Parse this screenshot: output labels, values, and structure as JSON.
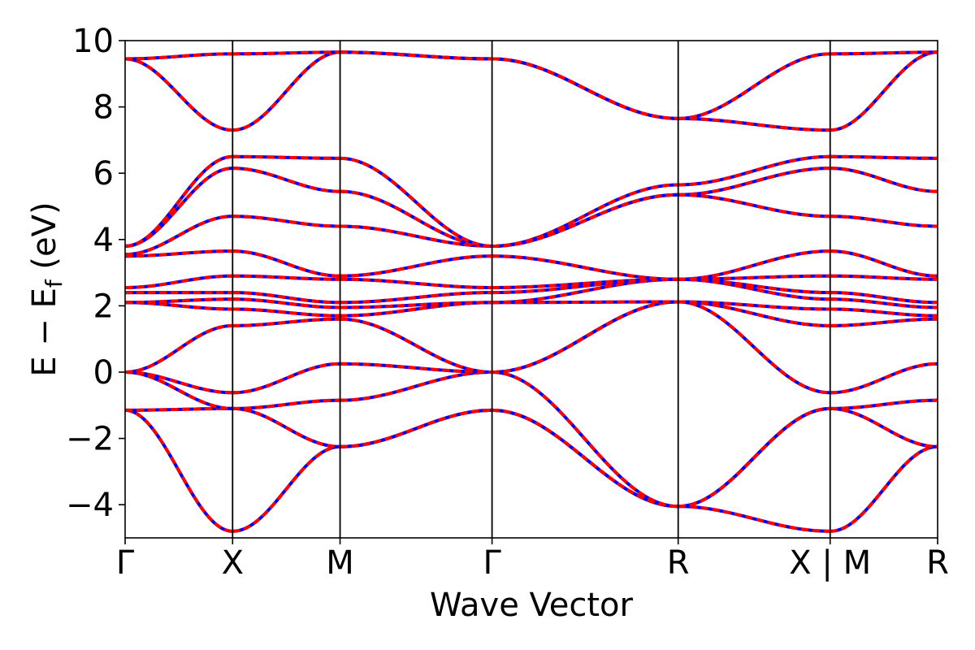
{
  "chart_data": {
    "type": "line",
    "xlabel": "Wave Vector",
    "ylabel": "E − E",
    "ylabel_subscript": "f",
    "ylabel_unit": " (eV)",
    "ylim": [
      -5,
      10
    ],
    "yticks": [
      -4,
      -2,
      0,
      2,
      4,
      6,
      8,
      10
    ],
    "ytick_labels": [
      "−4",
      "−2",
      "0",
      "2",
      "4",
      "6",
      "8",
      "10"
    ],
    "x_segments": [
      {
        "from": "Γ",
        "to": "X",
        "length": 1.0
      },
      {
        "from": "X",
        "to": "M",
        "length": 1.0
      },
      {
        "from": "M",
        "to": "Γ",
        "length": 1.414
      },
      {
        "from": "Γ",
        "to": "R",
        "length": 1.732
      },
      {
        "from": "R",
        "to": "X",
        "length": 1.414
      },
      {
        "from": "M",
        "to": "R",
        "length": 1.0
      }
    ],
    "xtick_labels": [
      "Γ",
      "X",
      "M",
      "Γ",
      "R",
      "X | M",
      "R"
    ],
    "colors": {
      "overlay": "#ff0000",
      "underlay": "#0000ff",
      "segment_line": "#000000"
    },
    "series_style": "blue solid lines overlaid by red dashed lines (identical band energies)",
    "bands": [
      {
        "values": [
          -1.15,
          -4.8,
          -2.25,
          -1.15,
          -4.05,
          -4.8,
          -2.25,
          -4.05
        ]
      },
      {
        "values": [
          -1.15,
          -1.1,
          -2.25,
          -1.15,
          -4.05,
          -1.1,
          -2.25,
          -4.05
        ]
      },
      {
        "values": [
          0.0,
          -1.1,
          -0.85,
          0.0,
          -4.05,
          -1.1,
          -0.85,
          -4.05
        ]
      },
      {
        "values": [
          0.0,
          -0.62,
          0.25,
          0.0,
          2.12,
          -0.62,
          0.25,
          2.12
        ]
      },
      {
        "values": [
          0.0,
          1.4,
          1.6,
          0.0,
          2.12,
          1.4,
          1.6,
          2.12
        ]
      },
      {
        "values": [
          2.1,
          1.9,
          1.7,
          2.1,
          2.12,
          1.9,
          1.7,
          2.12
        ]
      },
      {
        "values": [
          2.1,
          2.2,
          1.95,
          2.1,
          2.8,
          2.2,
          1.95,
          2.8
        ]
      },
      {
        "values": [
          2.4,
          2.4,
          2.1,
          2.4,
          2.8,
          2.4,
          2.1,
          2.8
        ]
      },
      {
        "values": [
          2.55,
          2.9,
          2.8,
          2.55,
          2.8,
          2.9,
          2.8,
          2.8
        ]
      },
      {
        "values": [
          3.5,
          3.65,
          2.9,
          3.5,
          2.8,
          3.65,
          2.9,
          2.8
        ]
      },
      {
        "values": [
          3.55,
          4.7,
          4.4,
          3.8,
          5.35,
          4.7,
          4.4,
          5.35
        ]
      },
      {
        "values": [
          3.8,
          6.15,
          5.45,
          3.8,
          5.35,
          6.15,
          5.45,
          5.35
        ]
      },
      {
        "values": [
          3.8,
          6.5,
          6.45,
          3.8,
          5.65,
          6.5,
          6.45,
          5.65
        ]
      },
      {
        "values": [
          9.45,
          7.3,
          9.65,
          9.45,
          7.65,
          7.3,
          9.65,
          7.65
        ]
      },
      {
        "values": [
          9.45,
          9.6,
          9.65,
          9.45,
          7.65,
          9.6,
          9.65,
          7.65
        ]
      }
    ]
  }
}
